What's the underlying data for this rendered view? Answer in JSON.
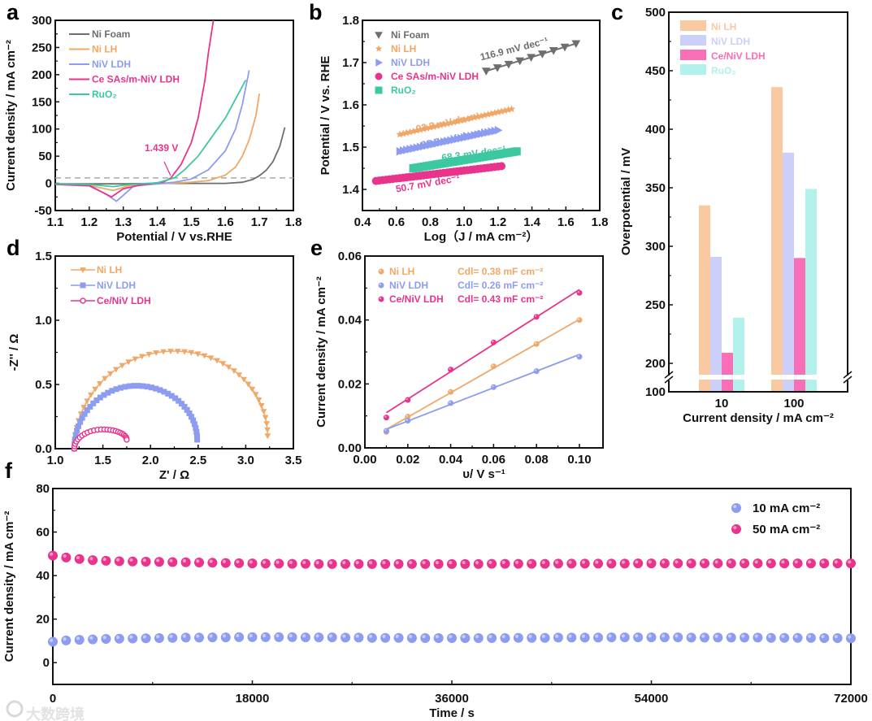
{
  "colors": {
    "ni_foam": "#6e6e6e",
    "ni_lh": "#f0a868",
    "niv_ldh": "#8c9cf0",
    "ce": "#e8348c",
    "ruo2": "#3cc8a0",
    "bar_ni_lh": "#f9c9a2",
    "bar_niv_ldh": "#cbcff9",
    "bar_ce": "#f86fb7",
    "bar_ruo2": "#b2f1ec"
  },
  "watermark": "大数跨境",
  "chart_data": [
    {
      "panel": "a",
      "type": "line",
      "xlabel": "Potential / V vs.RHE",
      "ylabel": "Current density / mA cm⁻²",
      "xlim": [
        1.1,
        1.8
      ],
      "ylim": [
        -50,
        300
      ],
      "xticks": [
        "1.1",
        "1.2",
        "1.3",
        "1.4",
        "1.5",
        "1.6",
        "1.7",
        "1.8"
      ],
      "yticks": [
        "-50",
        "0",
        "50",
        "100",
        "150",
        "200",
        "250",
        "300"
      ],
      "reference_line": 10,
      "annotation": {
        "text": "1.439 V",
        "x": 1.439,
        "y": 10
      },
      "legend": "top-left",
      "series": [
        {
          "name": "Ni Foam",
          "color": "ni_foam",
          "points": [
            [
              1.1,
              -1
            ],
            [
              1.2,
              -1
            ],
            [
              1.3,
              -1
            ],
            [
              1.4,
              0
            ],
            [
              1.5,
              0
            ],
            [
              1.6,
              0
            ],
            [
              1.65,
              2
            ],
            [
              1.68,
              7
            ],
            [
              1.7,
              14
            ],
            [
              1.72,
              24
            ],
            [
              1.74,
              40
            ],
            [
              1.76,
              68
            ],
            [
              1.775,
              103
            ]
          ]
        },
        {
          "name": "Ni LH",
          "color": "ni_lh",
          "points": [
            [
              1.1,
              -2
            ],
            [
              1.2,
              -4
            ],
            [
              1.27,
              -13
            ],
            [
              1.32,
              -4
            ],
            [
              1.4,
              -1
            ],
            [
              1.5,
              2
            ],
            [
              1.55,
              5
            ],
            [
              1.6,
              15
            ],
            [
              1.63,
              30
            ],
            [
              1.65,
              50
            ],
            [
              1.67,
              80
            ],
            [
              1.69,
              125
            ],
            [
              1.7,
              165
            ]
          ]
        },
        {
          "name": "NiV LDH",
          "color": "niv_ldh",
          "points": [
            [
              1.1,
              -2
            ],
            [
              1.2,
              -5
            ],
            [
              1.25,
              -20
            ],
            [
              1.28,
              -33
            ],
            [
              1.3,
              -22
            ],
            [
              1.33,
              -5
            ],
            [
              1.4,
              -1
            ],
            [
              1.45,
              2
            ],
            [
              1.5,
              8
            ],
            [
              1.55,
              25
            ],
            [
              1.6,
              60
            ],
            [
              1.63,
              100
            ],
            [
              1.65,
              145
            ],
            [
              1.67,
              208
            ]
          ]
        },
        {
          "name": "Ce SAs/m-NiV LDH",
          "color": "ce",
          "points": [
            [
              1.1,
              -2
            ],
            [
              1.2,
              -4
            ],
            [
              1.265,
              -25
            ],
            [
              1.3,
              -10
            ],
            [
              1.35,
              -3
            ],
            [
              1.42,
              3
            ],
            [
              1.44,
              10
            ],
            [
              1.47,
              35
            ],
            [
              1.5,
              75
            ],
            [
              1.52,
              120
            ],
            [
              1.54,
              190
            ],
            [
              1.55,
              240
            ],
            [
              1.565,
              300
            ]
          ]
        },
        {
          "name": "RuO₂",
          "color": "ruo2",
          "points": [
            [
              1.1,
              -1
            ],
            [
              1.2,
              -2
            ],
            [
              1.27,
              -6
            ],
            [
              1.32,
              -2
            ],
            [
              1.4,
              1
            ],
            [
              1.45,
              10
            ],
            [
              1.48,
              25
            ],
            [
              1.52,
              50
            ],
            [
              1.56,
              85
            ],
            [
              1.6,
              120
            ],
            [
              1.63,
              155
            ],
            [
              1.66,
              190
            ]
          ]
        }
      ]
    },
    {
      "panel": "b",
      "type": "scatter",
      "xlabel": "Log（J / mA cm⁻²）",
      "ylabel": "Potential / V vs. RHE",
      "xlim": [
        0.4,
        1.8
      ],
      "ylim": [
        1.35,
        1.8
      ],
      "xticks": [
        "0.4",
        "0.6",
        "0.8",
        "1.0",
        "1.2",
        "1.4",
        "1.6",
        "1.8"
      ],
      "yticks": [
        "1.4",
        "1.5",
        "1.6",
        "1.7",
        "1.8"
      ],
      "legend": "top-left",
      "series": [
        {
          "name": "Ni Foam",
          "color": "ni_foam",
          "marker": "triangle-down",
          "x_range": [
            1.13,
            1.66
          ],
          "y_range": [
            1.68,
            1.745
          ],
          "n": 9,
          "slope_label": "116.9 mV dec⁻¹"
        },
        {
          "name": "Ni LH",
          "color": "ni_lh",
          "marker": "star",
          "x_range": [
            0.62,
            1.28
          ],
          "y_range": [
            1.53,
            1.59
          ],
          "n": 34,
          "slope_label": "92.3 mV dec⁻¹"
        },
        {
          "name": "NiV LDH",
          "color": "niv_ldh",
          "marker": "triangle-right",
          "x_range": [
            0.62,
            1.2
          ],
          "y_range": [
            1.49,
            1.54
          ],
          "n": 30,
          "slope_label": "88.7 mV dec⁻¹"
        },
        {
          "name": "Ce SAs/m-NiV LDH",
          "color": "ce",
          "marker": "circle",
          "x_range": [
            0.48,
            1.22
          ],
          "y_range": [
            1.42,
            1.455
          ],
          "n": 38,
          "slope_label": "50.7 mV dec⁻¹"
        },
        {
          "name": "RuO₂",
          "color": "ruo2",
          "marker": "square",
          "x_range": [
            0.7,
            1.31
          ],
          "y_range": [
            1.45,
            1.49
          ],
          "n": 40,
          "slope_label": "68.3 mV dec⁻¹"
        }
      ]
    },
    {
      "panel": "c",
      "type": "bar",
      "xlabel": "Current density / mA cm⁻²",
      "ylabel": "Overpotential / mV",
      "categories": [
        "10",
        "100"
      ],
      "ylim": [
        100,
        500
      ],
      "axis_break": [
        100,
        190
      ],
      "yticks": [
        "100",
        "200",
        "250",
        "300",
        "350",
        "400",
        "450",
        "500"
      ],
      "legend": "top-left",
      "series": [
        {
          "name": "Ni LH",
          "color": "bar_ni_lh",
          "values": [
            335,
            436
          ]
        },
        {
          "name": "NiV LDH",
          "color": "bar_niv_ldh",
          "values": [
            291,
            380
          ]
        },
        {
          "name": "Ce/NiV LDH",
          "color": "bar_ce",
          "values": [
            209,
            290
          ]
        },
        {
          "name": "RuO₂",
          "color": "bar_ruo2",
          "values": [
            239,
            349
          ]
        }
      ]
    },
    {
      "panel": "d",
      "type": "line",
      "xlabel": "Z' / Ω",
      "ylabel": "-Z'' / Ω",
      "xlim": [
        1.0,
        3.5
      ],
      "ylim": [
        0,
        1.5
      ],
      "xticks": [
        "1.0",
        "1.5",
        "2.0",
        "2.5",
        "3.0",
        "3.5"
      ],
      "yticks": [
        "0.0",
        "0.5",
        "1.0",
        "1.5"
      ],
      "legend": "top-left",
      "series": [
        {
          "name": "Ni LH",
          "color": "ni_lh",
          "marker": "triangle-down",
          "z_start": 1.2,
          "z_end": 3.23,
          "peak_z": 2.25,
          "peak_im": 0.76,
          "end_im": 0.1,
          "n": 44
        },
        {
          "name": "NiV LDH",
          "color": "niv_ldh",
          "marker": "square",
          "z_start": 1.2,
          "z_end": 2.49,
          "peak_z": 1.85,
          "peak_im": 0.49,
          "end_im": 0.07,
          "n": 44
        },
        {
          "name": "Ce/NiV LDH",
          "color": "ce",
          "marker": "circle-open",
          "z_start": 1.2,
          "z_end": 1.75,
          "peak_z": 1.5,
          "peak_im": 0.15,
          "end_im": 0.07,
          "n": 26
        }
      ]
    },
    {
      "panel": "e",
      "type": "scatter",
      "xlabel": "υ/ V s⁻¹",
      "ylabel": "Current density / mA cm⁻²",
      "xlim": [
        0,
        0.111
      ],
      "ylim": [
        0,
        0.06
      ],
      "xticks": [
        "0.00",
        "0.02",
        "0.04",
        "0.06",
        "0.08",
        "0.10"
      ],
      "yticks": [
        "0.00",
        "0.02",
        "0.04",
        "0.06"
      ],
      "legend": "top-left",
      "x": [
        0.01,
        0.02,
        0.04,
        0.06,
        0.08,
        0.1
      ],
      "series": [
        {
          "name": "Ni LH",
          "color": "ni_lh",
          "values": [
            0.005,
            0.0098,
            0.0175,
            0.0255,
            0.0325,
            0.04
          ],
          "fit": [
            0.0058,
            0.0402
          ],
          "cdl": "Cdl= 0.38 mF cm⁻²"
        },
        {
          "name": "NiV LDH",
          "color": "niv_ldh",
          "values": [
            0.0053,
            0.0085,
            0.014,
            0.019,
            0.024,
            0.0285
          ],
          "fit": [
            0.0058,
            0.0292
          ],
          "cdl": "Cdl= 0.26 mF cm⁻²"
        },
        {
          "name": "Ce/NiV LDH",
          "color": "ce",
          "values": [
            0.0095,
            0.015,
            0.0245,
            0.033,
            0.041,
            0.0485
          ],
          "fit": [
            0.011,
            0.0495
          ],
          "cdl": "Cdl= 0.43 mF cm⁻²"
        }
      ]
    },
    {
      "panel": "f",
      "type": "scatter",
      "xlabel": "Time / s",
      "ylabel": "Current density / mA cm⁻²",
      "xlim": [
        0,
        72000
      ],
      "ylim": [
        -10,
        80
      ],
      "xticks": [
        "0",
        "18000",
        "36000",
        "54000",
        "72000"
      ],
      "yticks": [
        "0",
        "20",
        "40",
        "60",
        "80"
      ],
      "legend": "top-right",
      "time_step_s": 1200,
      "series": [
        {
          "name": "10 mA cm⁻²",
          "color": "niv_ldh",
          "values": [
            9.6,
            10.2,
            10.5,
            10.7,
            10.9,
            11.0,
            11.1,
            11.2,
            11.3,
            11.4,
            11.5,
            11.5,
            11.6,
            11.6,
            11.7,
            11.7,
            11.7,
            11.7,
            11.7,
            11.6,
            11.6,
            11.6,
            11.5,
            11.5,
            11.4,
            11.4,
            11.4,
            11.3,
            11.3,
            11.3,
            11.3,
            11.3,
            11.3,
            11.3,
            11.3,
            11.4,
            11.4,
            11.4,
            11.5,
            11.5,
            11.5,
            11.5,
            11.6,
            11.6,
            11.6,
            11.6,
            11.6,
            11.6,
            11.5,
            11.5,
            11.5,
            11.5,
            11.5,
            11.5,
            11.4,
            11.4,
            11.4,
            11.4,
            11.3,
            11.3,
            11.2
          ]
        },
        {
          "name": "50 mA cm⁻²",
          "color": "ce",
          "values": [
            49.2,
            48.3,
            47.6,
            47.1,
            46.8,
            46.6,
            46.5,
            46.4,
            46.3,
            46.2,
            46.1,
            46.0,
            45.9,
            45.8,
            45.7,
            45.6,
            45.5,
            45.5,
            45.4,
            45.4,
            45.3,
            45.3,
            45.3,
            45.3,
            45.3,
            45.3,
            45.3,
            45.3,
            45.3,
            45.3,
            45.3,
            45.3,
            45.3,
            45.4,
            45.4,
            45.4,
            45.4,
            45.4,
            45.5,
            45.5,
            45.5,
            45.5,
            45.5,
            45.5,
            45.6,
            45.6,
            45.6,
            45.6,
            45.6,
            45.6,
            45.6,
            45.6,
            45.6,
            45.6,
            45.6,
            45.6,
            45.6,
            45.6,
            45.6,
            45.6,
            45.6
          ]
        }
      ]
    }
  ],
  "panel_letters": [
    "a",
    "b",
    "c",
    "d",
    "e",
    "f"
  ]
}
